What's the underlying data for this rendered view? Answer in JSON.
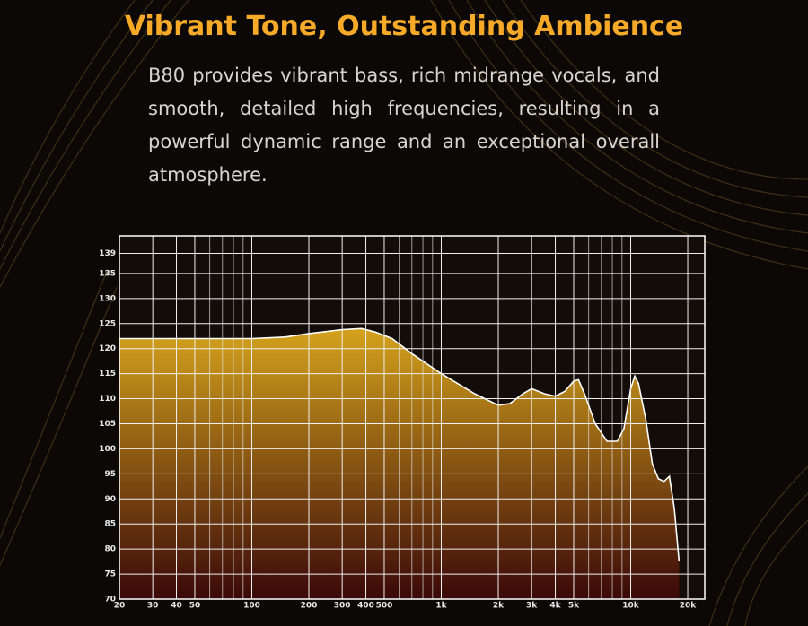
{
  "chart_data": {
    "type": "area",
    "title": "Vibrant Tone, Outstanding Ambience",
    "subtitle": "B80 provides vibrant bass, rich midrange vocals, and smooth, detailed high frequencies, resulting in a powerful dynamic range and an exceptional overall atmosphere.",
    "x": [
      20,
      30,
      50,
      100,
      150,
      200,
      300,
      380,
      450,
      550,
      700,
      1000,
      1500,
      2000,
      2300,
      2700,
      3000,
      3500,
      4000,
      4500,
      5000,
      5300,
      5700,
      6500,
      7500,
      8500,
      9200,
      10000,
      10500,
      11000,
      12000,
      13000,
      14000,
      15000,
      16000,
      17000,
      18000
    ],
    "values": [
      122,
      122,
      122,
      122,
      122.3,
      123,
      123.8,
      124,
      123.3,
      122,
      119,
      115,
      111,
      108.7,
      109,
      111,
      112,
      111,
      110.5,
      111.5,
      113.5,
      113.8,
      111,
      105,
      101.5,
      101.5,
      104,
      112,
      114.5,
      113,
      106,
      97,
      94,
      93.5,
      94.5,
      88,
      77.5
    ],
    "color": "#ffffff",
    "fill_colors": [
      "#d4a21c",
      "#3a0808"
    ],
    "xscale": "log",
    "xlim": [
      20,
      24600
    ],
    "ylim": [
      70,
      142.5
    ],
    "xticks": [
      20,
      30,
      40,
      50,
      100,
      200,
      300,
      400,
      500,
      {
        "value": 1000,
        "label": "1k"
      },
      {
        "value": 2000,
        "label": "2k"
      },
      {
        "value": 3000,
        "label": "3k"
      },
      {
        "value": 4000,
        "label": "4k"
      },
      {
        "value": 5000,
        "label": "5k"
      },
      {
        "value": 10000,
        "label": "10k"
      },
      {
        "value": 20000,
        "label": "20k"
      }
    ],
    "x_minor_ticks": [
      60,
      70,
      80,
      90,
      600,
      700,
      800,
      900,
      6000,
      7000,
      8000,
      9000
    ],
    "yticks": [
      70,
      75,
      80,
      85,
      90,
      95,
      100,
      105,
      110,
      115,
      120,
      125,
      130,
      135,
      139
    ],
    "grid": true
  }
}
